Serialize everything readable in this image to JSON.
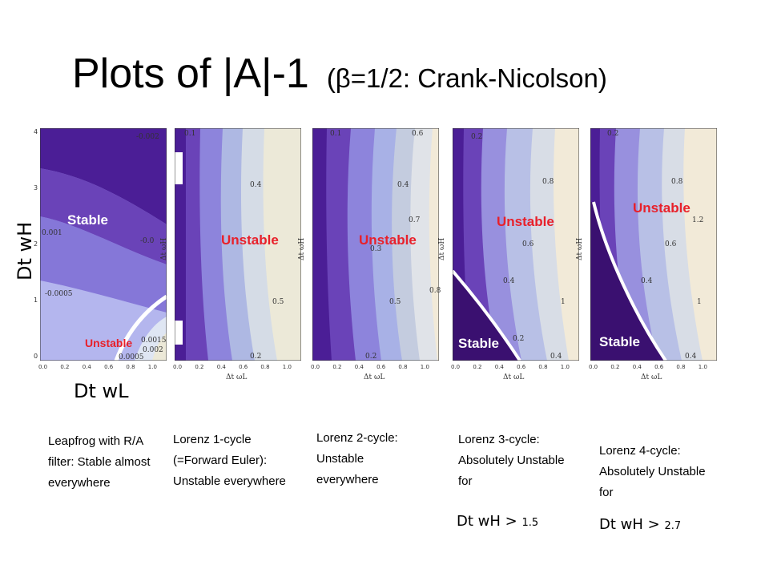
{
  "title": {
    "main": "Plots of |A|-1",
    "sub": "(β=1/2: Crank-Nicolson)"
  },
  "axis_big": {
    "y": "Dt wH",
    "x": "Dt wL"
  },
  "axis_small": {
    "x": "Δt ωL",
    "y": "Δt ωH"
  },
  "y_ticks": [
    "0",
    "1",
    "2",
    "3",
    "4"
  ],
  "x_ticks": "0.0 0.2 0.4 0.6 0.8 1.0",
  "panels": [
    {
      "labels": [
        {
          "text": "Stable"
        },
        {
          "text": "Unstable"
        }
      ],
      "contours": [
        "-0.002",
        "0.001",
        "-0.0",
        "-0.0005",
        "0.0015",
        "0.002",
        "0.0005"
      ],
      "caption": "Leapfrog with R/A filter: Stable almost everywhere"
    },
    {
      "labels": [
        {
          "text": "Unstable"
        }
      ],
      "contours": [
        "0.1",
        "0.4",
        "0.5",
        "0.2"
      ],
      "caption": "Lorenz 1-cycle (=Forward Euler): Unstable everywhere"
    },
    {
      "labels": [
        {
          "text": "Unstable"
        }
      ],
      "contours": [
        "0.1",
        "0.6",
        "0.4",
        "0.7",
        "0.3",
        "0.5",
        "0.2",
        "0.8"
      ],
      "caption": "Lorenz 2-cycle: Unstable everywhere"
    },
    {
      "labels": [
        {
          "text": "Unstable"
        },
        {
          "text": "Stable"
        }
      ],
      "contours": [
        "0.2",
        "0.8",
        "0.6",
        "0.4",
        "1",
        "0.2",
        "0.4"
      ],
      "caption": "Lorenz 3-cycle: Absolutely Unstable for",
      "condition": {
        "sym": "Dt wH",
        "rel": ">",
        "value": "1.5"
      }
    },
    {
      "labels": [
        {
          "text": "Unstable"
        },
        {
          "text": "Stable"
        }
      ],
      "contours": [
        "0.2",
        "0.8",
        "1.2",
        "0.6",
        "0.4",
        "1",
        "0.4"
      ],
      "caption": "Lorenz 4-cycle: Absolutely Unstable for",
      "condition": {
        "sym": "Dt wH",
        "rel": ">",
        "value": "2.7"
      }
    }
  ],
  "colors": {
    "red_label": "#e8202a",
    "deep_purple": "#4b1e96",
    "pale": "#f2ead8"
  }
}
